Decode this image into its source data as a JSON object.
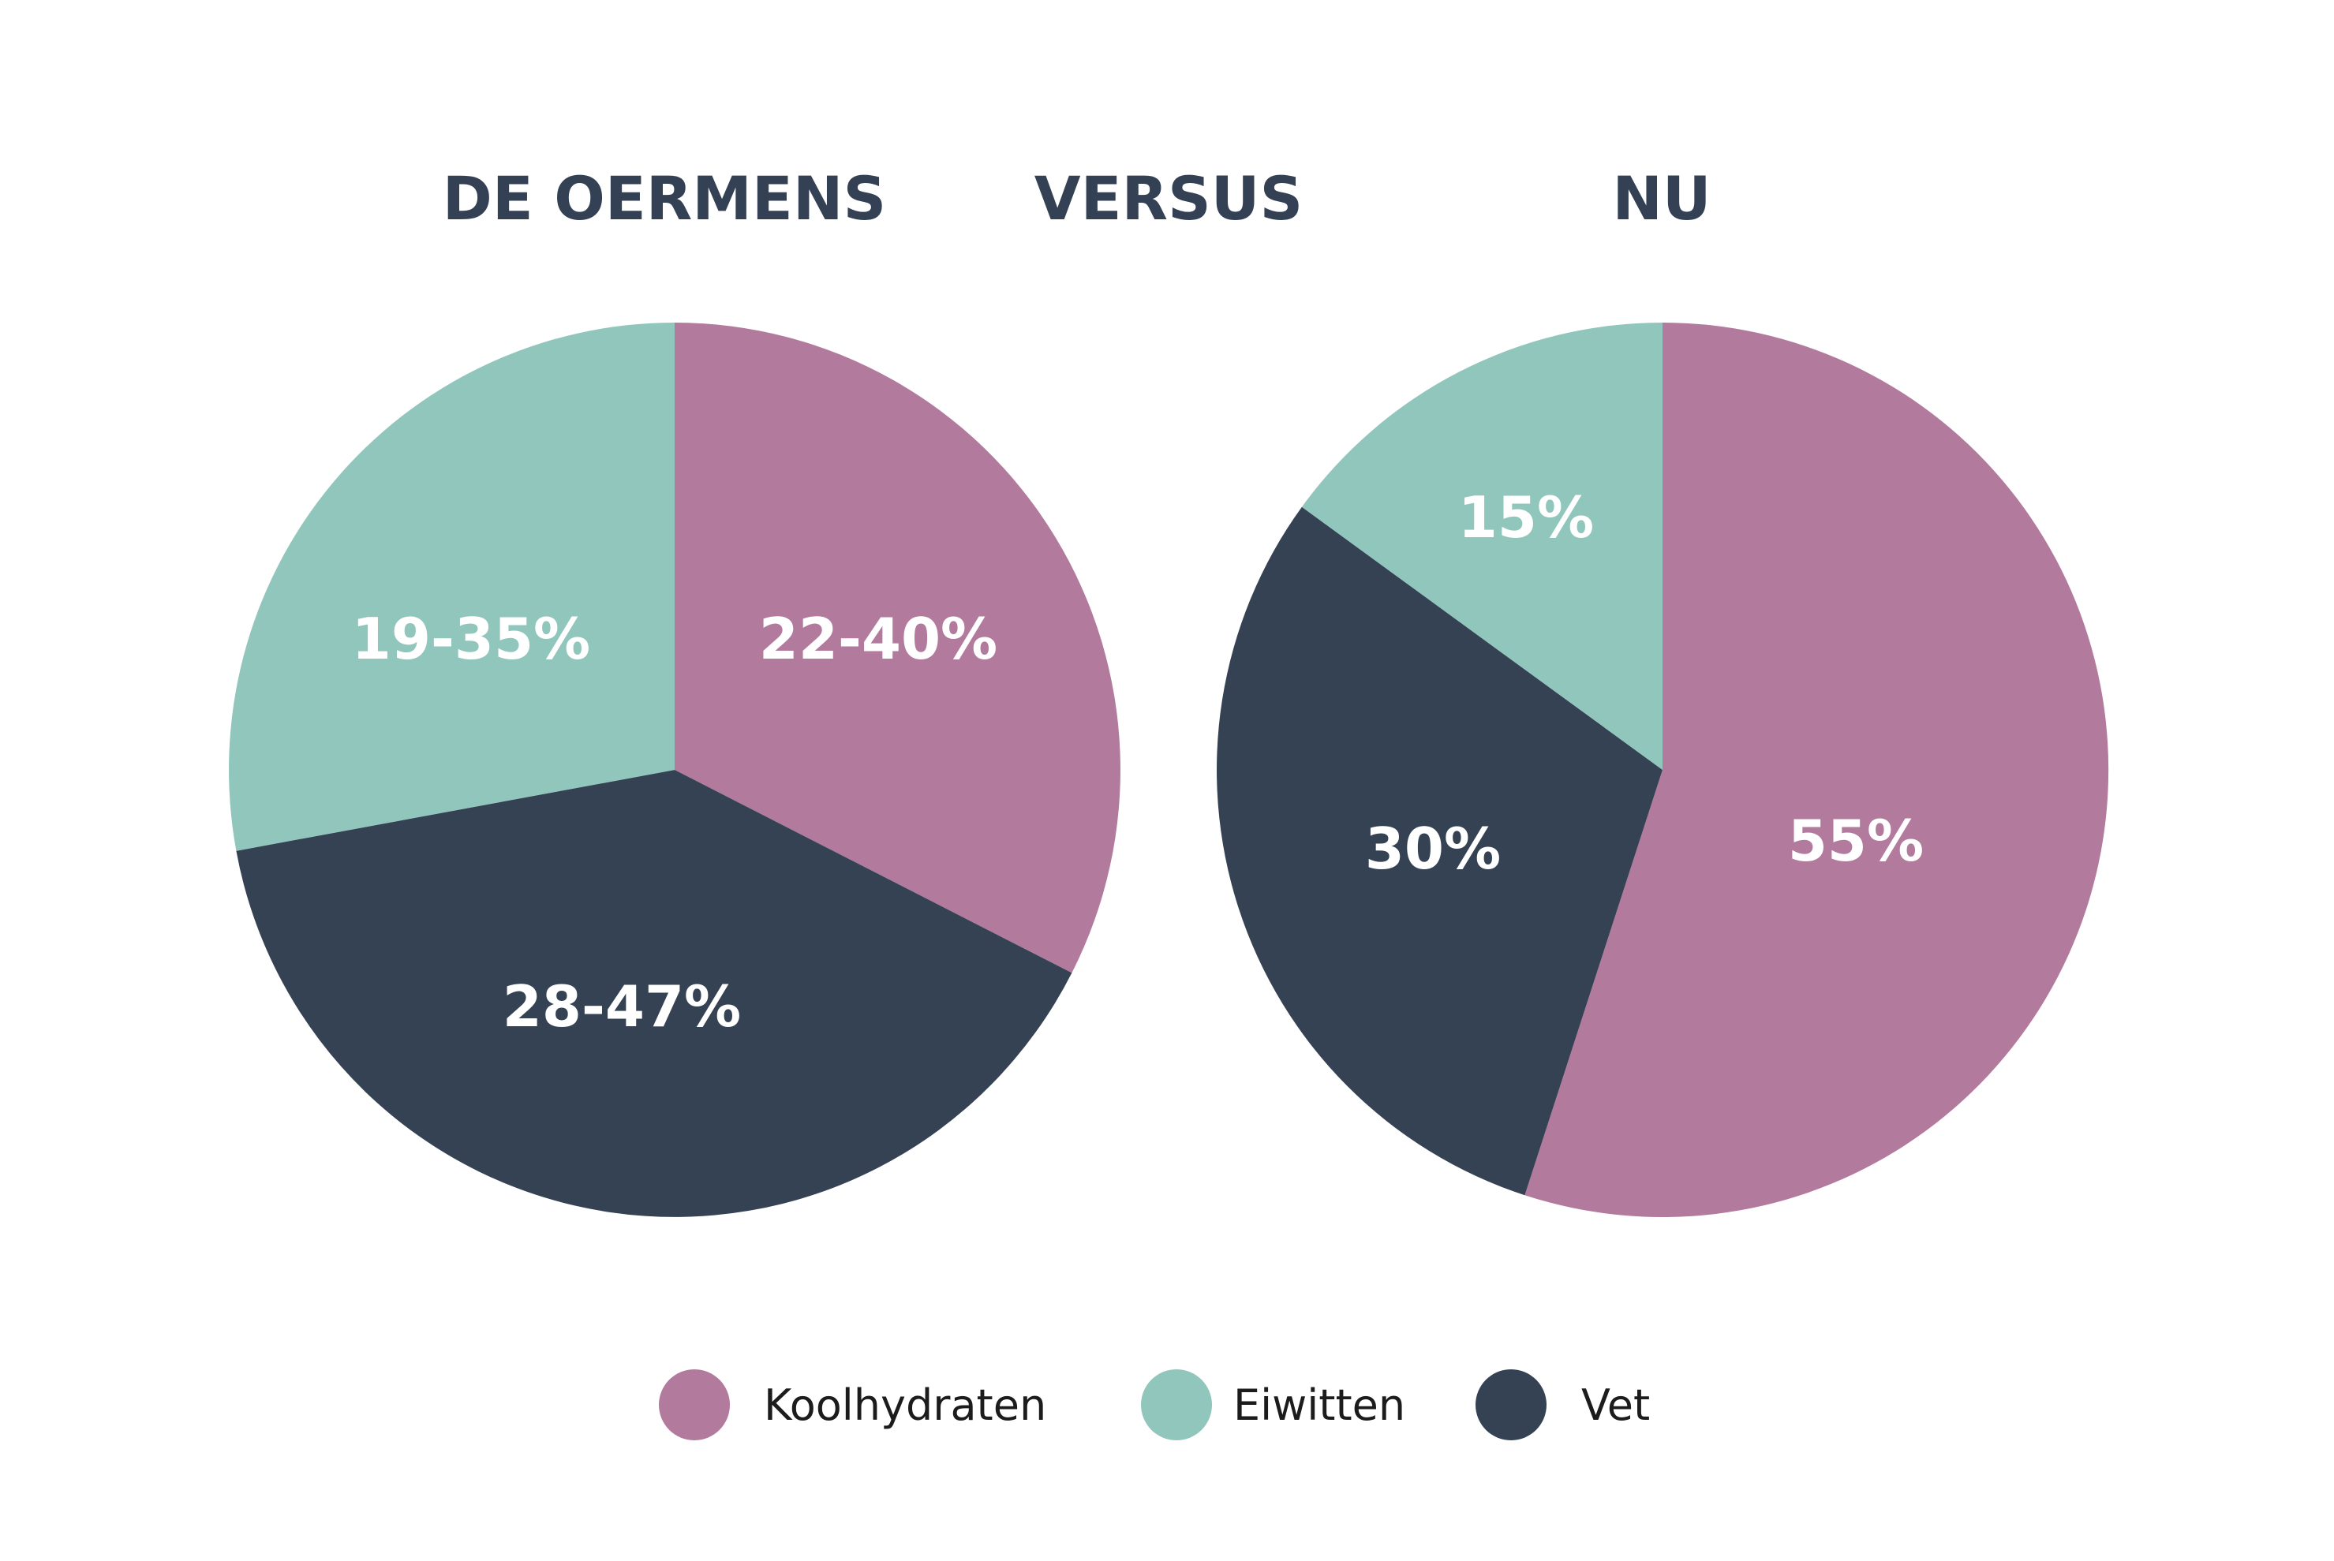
{
  "headings": {
    "left": "DE OERMENS",
    "middle": "VERSUS",
    "right": "NU"
  },
  "legend": [
    {
      "label": "Koolhydraten",
      "color": "#b27a9c"
    },
    {
      "label": "Eiwitten",
      "color": "#91c6bc"
    },
    {
      "label": "Vet",
      "color": "#354254"
    }
  ],
  "chart_data": [
    {
      "type": "pie",
      "title": "DE OERMENS",
      "slices": [
        {
          "category": "Koolhydraten",
          "label": "22-40%",
          "value": 32.5,
          "color": "#b27a9c"
        },
        {
          "category": "Vet",
          "label": "28-47%",
          "value": 39.6,
          "color": "#354254"
        },
        {
          "category": "Eiwitten",
          "label": "19-35%",
          "value": 27.9,
          "color": "#91c6bc"
        }
      ]
    },
    {
      "type": "pie",
      "title": "NU",
      "slices": [
        {
          "category": "Koolhydraten",
          "label": "55%",
          "value": 55,
          "color": "#b27a9c"
        },
        {
          "category": "Vet",
          "label": "30%",
          "value": 30,
          "color": "#354254"
        },
        {
          "category": "Eiwitten",
          "label": "15%",
          "value": 15,
          "color": "#91c6bc"
        }
      ]
    }
  ]
}
